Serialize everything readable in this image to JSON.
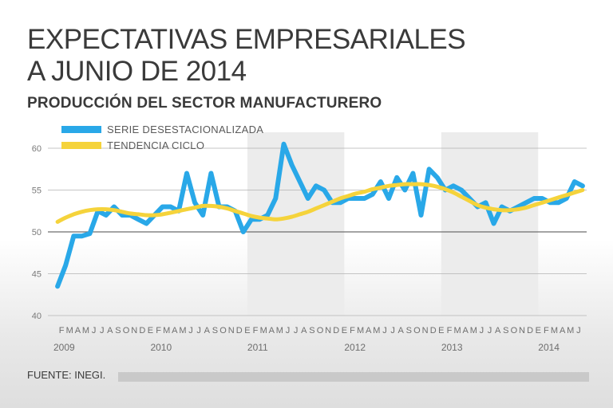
{
  "header": {
    "title_line1": "EXPECTATIVAS EMPRESARIALES",
    "title_line2": "A JUNIO DE 2014",
    "subtitle": "PRODUCCIÓN DEL SECTOR MANUFACTURERO"
  },
  "source": "FUENTE: INEGI.",
  "colors": {
    "series": "#29a8e8",
    "trend": "#f5d33b",
    "band": "#ececec",
    "grid": "#9a9a9a",
    "text": "#3a3a3a"
  },
  "chart_data": {
    "type": "line",
    "title": "PRODUCCIÓN DEL SECTOR MANUFACTURERO",
    "xlabel": "",
    "ylabel": "",
    "ylim": [
      40,
      62
    ],
    "yticks": [
      40,
      45,
      50,
      55,
      60
    ],
    "grid": "horizontal",
    "legend_position": "top-left",
    "month_letters": [
      "E",
      "F",
      "M",
      "A",
      "M",
      "J",
      "J",
      "A",
      "S",
      "O",
      "N",
      "D"
    ],
    "years": [
      "2009",
      "2010",
      "2011",
      "2012",
      "2013",
      "2014"
    ],
    "shaded_years": [
      "2011",
      "2013"
    ],
    "series": [
      {
        "name": "SERIE DESESTACIONALIZADA",
        "values": [
          43.5,
          46,
          49.5,
          49.5,
          49.8,
          52.5,
          52,
          53,
          52,
          52,
          51.5,
          51,
          52,
          53,
          53,
          52.5,
          57,
          53.5,
          52,
          57,
          53,
          53,
          52.5,
          50,
          51.5,
          51.5,
          52,
          54,
          60.5,
          58,
          56,
          54,
          55.5,
          55,
          53.5,
          53.5,
          54,
          54,
          54,
          54.5,
          56,
          54,
          56.5,
          55,
          57,
          52,
          57.5,
          56.5,
          55,
          55.5,
          55,
          54,
          53,
          53.5,
          51,
          53,
          52.5,
          53,
          53.5,
          54,
          54,
          53.5,
          53.5,
          54,
          56,
          55.5
        ]
      },
      {
        "name": "TENDENCIA CICLO",
        "values": [
          51.2,
          51.7,
          52.1,
          52.4,
          52.6,
          52.7,
          52.7,
          52.6,
          52.4,
          52.2,
          52.1,
          52.0,
          52.0,
          52.1,
          52.3,
          52.5,
          52.7,
          52.9,
          53.1,
          53.1,
          53.0,
          52.8,
          52.5,
          52.2,
          51.9,
          51.7,
          51.6,
          51.5,
          51.6,
          51.8,
          52.1,
          52.4,
          52.8,
          53.2,
          53.6,
          54.0,
          54.3,
          54.6,
          54.8,
          55.1,
          55.3,
          55.5,
          55.6,
          55.7,
          55.7,
          55.7,
          55.6,
          55.4,
          55.1,
          54.7,
          54.2,
          53.7,
          53.2,
          52.9,
          52.7,
          52.6,
          52.6,
          52.7,
          52.9,
          53.2,
          53.5,
          53.8,
          54.1,
          54.4,
          54.7,
          55.0
        ]
      }
    ]
  }
}
